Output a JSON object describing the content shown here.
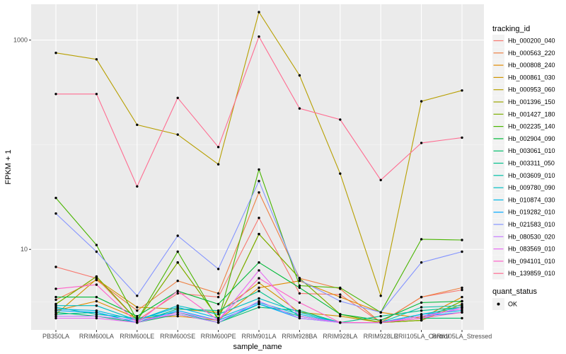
{
  "chart_data": {
    "type": "line",
    "title": "",
    "xlabel": "sample_name",
    "ylabel": "FPKM + 1",
    "y_scale": "log10",
    "ylim": [
      1.7,
      2200
    ],
    "y_ticks": [
      10,
      1000
    ],
    "y_tick_labels": [
      "10",
      "1000"
    ],
    "grid": true,
    "categories": [
      "PB350LA",
      "RRIM600LA",
      "RRIM600LE",
      "RRIM600SE",
      "RRIM600PE",
      "RRIM901LA",
      "RRIM928BA",
      "RRIM928LA",
      "RRIM928LE",
      "RRII105LA_Control",
      "RRII105LA_Stressed"
    ],
    "legend": {
      "title": "tracking_id",
      "placement": "right",
      "shape_title": "quant_status",
      "shape_label": "OK"
    },
    "series": [
      {
        "name": "Hb_000200_040",
        "color": "#F8766D",
        "values": [
          6.8,
          5.3,
          2.1,
          3.8,
          3.5,
          20,
          3.8,
          3.7,
          2.0,
          3.5,
          4.1
        ]
      },
      {
        "name": "Hb_000563_220",
        "color": "#EE8042",
        "values": [
          3.3,
          5.1,
          2.6,
          5.0,
          3.8,
          35,
          5.3,
          4.2,
          2.0,
          3.5,
          4.3
        ]
      },
      {
        "name": "Hb_000808_240",
        "color": "#E18A00",
        "values": [
          2.6,
          3.2,
          2.2,
          2.3,
          2.1,
          4.3,
          5.0,
          3.5,
          2.5,
          2.2,
          3.5
        ]
      },
      {
        "name": "Hb_000861_030",
        "color": "#CF9400",
        "values": [
          2.4,
          5.2,
          2.8,
          2.7,
          2.5,
          4.8,
          2.5,
          2.3,
          2.0,
          2.1,
          3.0
        ]
      },
      {
        "name": "Hb_000953_060",
        "color": "#B79F00",
        "values": [
          755,
          655,
          155,
          125,
          65,
          1850,
          460,
          53,
          3.6,
          260,
          330
        ]
      },
      {
        "name": "Hb_001396_150",
        "color": "#9DA700",
        "values": [
          3.0,
          5.5,
          2.1,
          7.5,
          2.2,
          14,
          5.3,
          2.4,
          2.0,
          2.1,
          3.2
        ]
      },
      {
        "name": "Hb_001427_180",
        "color": "#7CAE00",
        "values": [
          3.0,
          5.5,
          2.1,
          7.5,
          2.2,
          14,
          5.3,
          2.4,
          2.0,
          2.1,
          3.2
        ]
      },
      {
        "name": "Hb_002235_140",
        "color": "#49B500",
        "values": [
          31,
          11,
          2.1,
          9.5,
          2.1,
          58,
          4.5,
          4.3,
          2.5,
          12.5,
          12.3
        ]
      },
      {
        "name": "Hb_002904_090",
        "color": "#00BA38",
        "values": [
          3.5,
          3.5,
          2.3,
          4.0,
          3.0,
          7.5,
          4.3,
          2.4,
          2.1,
          3.1,
          3.2
        ]
      },
      {
        "name": "Hb_003061_010",
        "color": "#00BE6B",
        "values": [
          2.5,
          2.3,
          2.0,
          2.4,
          2.0,
          2.8,
          2.6,
          2.0,
          2.0,
          2.2,
          2.2
        ]
      },
      {
        "name": "Hb_003311_050",
        "color": "#00C08B",
        "values": [
          2.4,
          2.5,
          2.0,
          2.7,
          2.6,
          4.0,
          2.3,
          2.0,
          2.3,
          2.6,
          2.8
        ]
      },
      {
        "name": "Hb_003609_010",
        "color": "#00C1A7",
        "values": [
          2.8,
          2.4,
          2.2,
          2.5,
          2.0,
          3.0,
          2.3,
          2.0,
          2.0,
          2.8,
          2.9
        ]
      },
      {
        "name": "Hb_009780_090",
        "color": "#00BFC4",
        "values": [
          2.9,
          2.9,
          2.1,
          2.9,
          2.4,
          3.4,
          2.5,
          2.0,
          2.0,
          2.4,
          2.8
        ]
      },
      {
        "name": "Hb_010874_030",
        "color": "#00B8E7",
        "values": [
          2.7,
          2.6,
          2.1,
          2.8,
          2.2,
          3.1,
          2.4,
          2.0,
          2.0,
          2.4,
          2.6
        ]
      },
      {
        "name": "Hb_019282_010",
        "color": "#00A9FF",
        "values": [
          2.6,
          2.5,
          2.0,
          2.6,
          2.1,
          3.0,
          2.2,
          2.0,
          2.0,
          2.3,
          2.5
        ]
      },
      {
        "name": "Hb_021583_010",
        "color": "#8494FF",
        "values": [
          22,
          9.5,
          3.6,
          13.5,
          6.5,
          45,
          5.1,
          3.2,
          2.5,
          7.5,
          9.5
        ]
      },
      {
        "name": "Hb_080530_020",
        "color": "#C77CFF",
        "values": [
          2.3,
          2.3,
          2.1,
          2.4,
          2.0,
          3.2,
          2.2,
          2.0,
          2.0,
          2.2,
          2.8
        ]
      },
      {
        "name": "Hb_083569_010",
        "color": "#E76BF3",
        "values": [
          2.2,
          2.2,
          2.0,
          2.5,
          2.1,
          6.3,
          2.3,
          2.0,
          2.0,
          2.3,
          2.7
        ]
      },
      {
        "name": "Hb_094101_010",
        "color": "#FF61C9",
        "values": [
          4.2,
          4.6,
          2.0,
          4.0,
          2.1,
          5.3,
          3.1,
          2.0,
          2.0,
          2.2,
          2.5
        ]
      },
      {
        "name": "Hb_139859_010",
        "color": "#FF6C91",
        "values": [
          305,
          305,
          40,
          280,
          95,
          1080,
          222,
          174,
          46,
          104,
          117
        ]
      }
    ]
  }
}
